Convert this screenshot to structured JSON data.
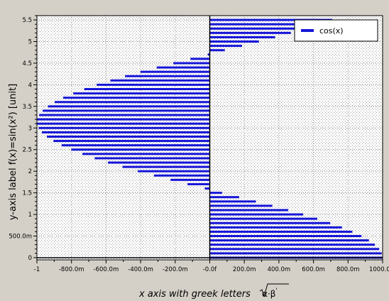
{
  "chart_data": {
    "type": "bar",
    "orientation": "horizontal",
    "xlabel": "x axis with greek letters √α·β'",
    "xlabel_parts": {
      "main": "x axis with greek letters ",
      "sqrt": "α·β",
      "prime": "'"
    },
    "ylabel": "y-axis label f(x)=sin(x²) [unit]",
    "xlim": [
      -1,
      1
    ],
    "ylim": [
      -0.05,
      5.6
    ],
    "grid": true,
    "legend_position": "top-right",
    "colors": {
      "bar": "#1515d8",
      "background": "#d4d0c8",
      "plot": "#ffffff"
    },
    "x_ticks": [
      "-1",
      "-800.0m",
      "-600.0m",
      "-400.0m",
      "-200.0m",
      "-0.0f",
      "200.0m",
      "400.0m",
      "600.0m",
      "800.0m",
      "1000.0m"
    ],
    "x_tick_values": [
      -1,
      -0.8,
      -0.6,
      -0.4,
      -0.2,
      0,
      0.2,
      0.4,
      0.6,
      0.8,
      1
    ],
    "y_ticks": [
      "0",
      "500.0m",
      "1",
      "1.5",
      "2",
      "2.5",
      "3",
      "3.5",
      "4",
      "4.5",
      "5",
      "5.5"
    ],
    "y_tick_values": [
      0,
      0.5,
      1,
      1.5,
      2,
      2.5,
      3,
      3.5,
      4,
      4.5,
      5,
      5.5
    ],
    "series": [
      {
        "name": "cos(x)",
        "y": [
          0.0,
          0.1,
          0.2,
          0.3,
          0.4,
          0.5,
          0.6,
          0.7,
          0.8,
          0.9,
          1.0,
          1.1,
          1.2,
          1.3,
          1.4,
          1.5,
          1.6,
          1.7,
          1.8,
          1.9,
          2.0,
          2.1,
          2.2,
          2.3,
          2.4,
          2.5,
          2.6,
          2.7,
          2.8,
          2.9,
          3.0,
          3.1,
          3.2,
          3.3,
          3.4,
          3.5,
          3.6,
          3.7,
          3.8,
          3.9,
          4.0,
          4.1,
          4.2,
          4.3,
          4.4,
          4.5,
          4.6,
          4.7,
          4.8,
          4.9,
          5.0,
          5.1,
          5.2,
          5.3,
          5.4,
          5.5
        ],
        "values": [
          1.0,
          0.995,
          0.98,
          0.955,
          0.921,
          0.878,
          0.825,
          0.765,
          0.697,
          0.622,
          0.54,
          0.454,
          0.362,
          0.267,
          0.17,
          0.071,
          -0.029,
          -0.129,
          -0.227,
          -0.323,
          -0.416,
          -0.505,
          -0.589,
          -0.666,
          -0.737,
          -0.801,
          -0.857,
          -0.904,
          -0.942,
          -0.971,
          -0.99,
          -0.999,
          -0.998,
          -0.987,
          -0.967,
          -0.936,
          -0.897,
          -0.848,
          -0.79,
          -0.726,
          -0.654,
          -0.575,
          -0.49,
          -0.401,
          -0.307,
          -0.211,
          -0.112,
          -0.012,
          0.087,
          0.187,
          0.284,
          0.378,
          0.469,
          0.554,
          0.635,
          0.709
        ]
      }
    ]
  }
}
